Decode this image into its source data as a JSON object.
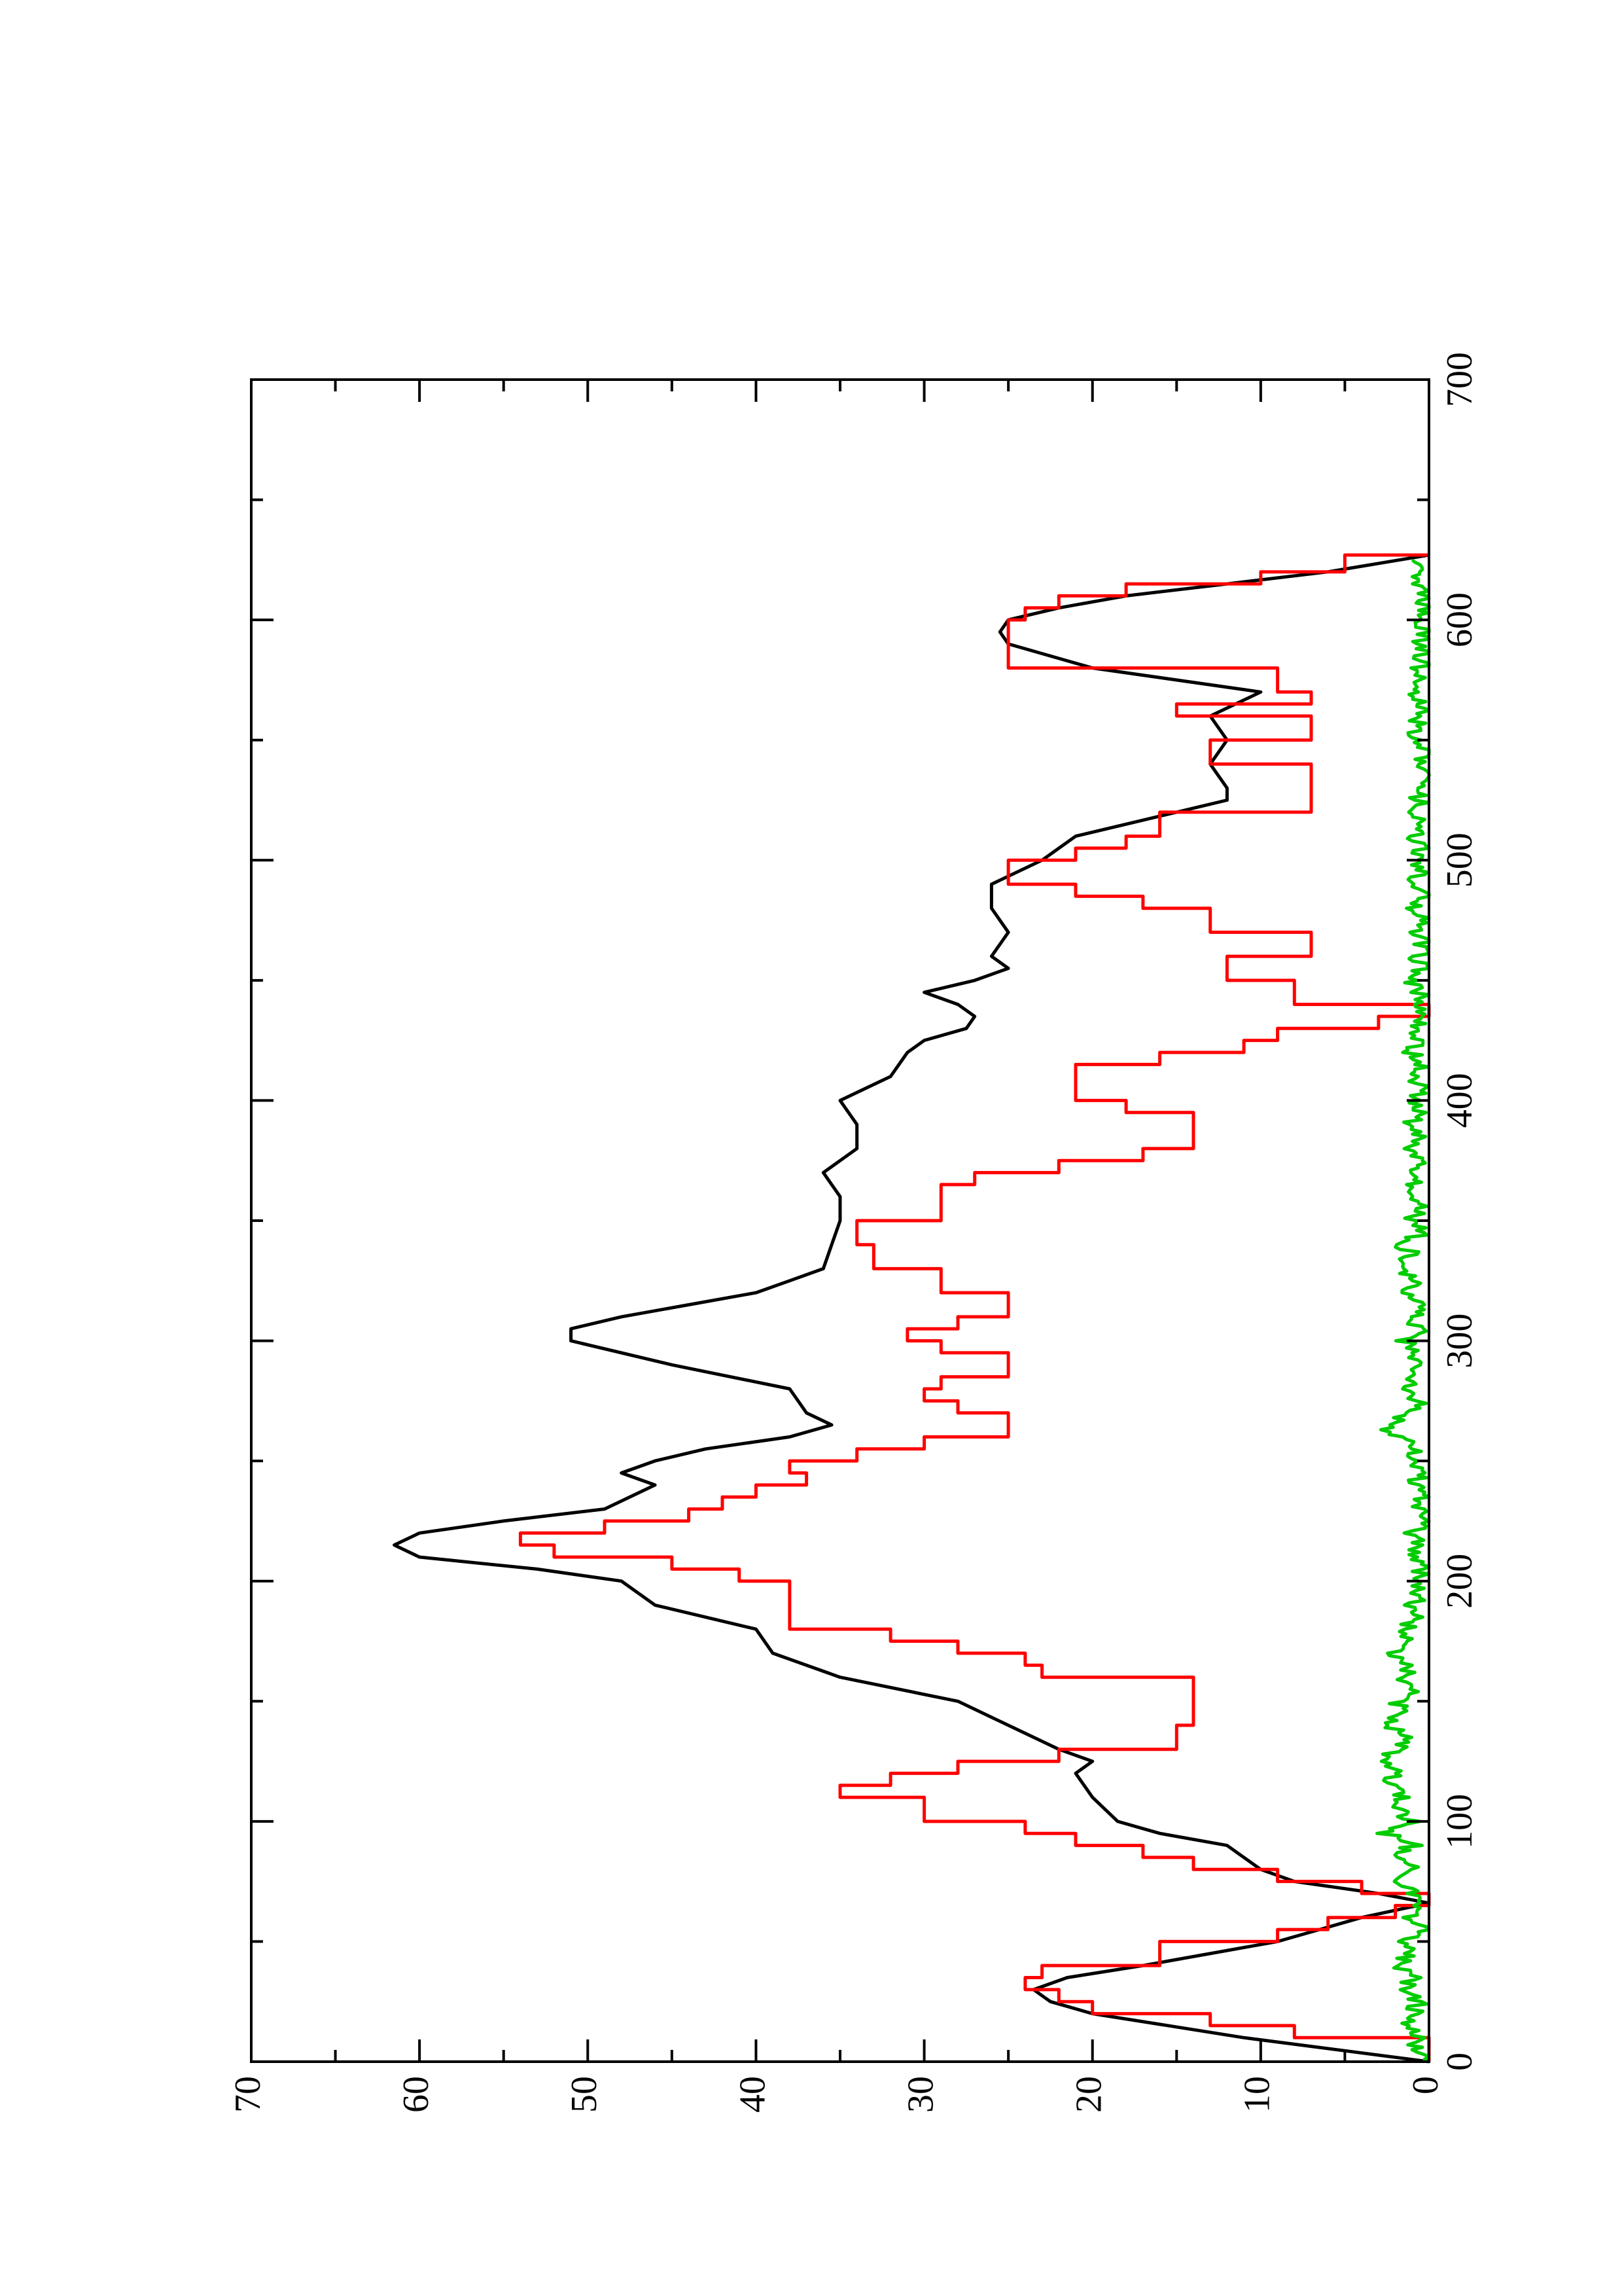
{
  "chart_data": {
    "type": "line",
    "title": "",
    "xlabel": "",
    "ylabel": "",
    "orientation": "rotated-90-ccw",
    "xlim": [
      0,
      700
    ],
    "ylim": [
      0,
      70
    ],
    "x_major_ticks": [
      0,
      100,
      200,
      300,
      400,
      500,
      600,
      700
    ],
    "x_minor_ticks": [
      50,
      150,
      250,
      350,
      450,
      550,
      650
    ],
    "y_major_ticks": [
      0,
      10,
      20,
      30,
      40,
      50,
      60,
      70
    ],
    "y_minor_ticks": [
      5,
      15,
      25,
      35,
      45,
      55,
      65
    ],
    "x_tick_labels": [
      "0",
      "100",
      "200",
      "300",
      "400",
      "500",
      "600",
      "700"
    ],
    "y_tick_labels": [
      "0",
      "10",
      "20",
      "30",
      "40",
      "50",
      "60",
      "70"
    ],
    "grid": false,
    "legend": "none",
    "series": [
      {
        "color": "#000000",
        "style": "smooth",
        "points": [
          [
            0,
            0
          ],
          [
            10,
            11
          ],
          [
            20,
            20
          ],
          [
            25,
            22.5
          ],
          [
            30,
            23.5
          ],
          [
            35,
            21.5
          ],
          [
            40,
            17
          ],
          [
            50,
            9
          ],
          [
            60,
            4
          ],
          [
            66,
            0
          ],
          [
            70,
            3
          ],
          [
            75,
            8
          ],
          [
            80,
            10
          ],
          [
            90,
            12
          ],
          [
            95,
            16
          ],
          [
            100,
            18.5
          ],
          [
            110,
            20
          ],
          [
            120,
            21
          ],
          [
            125,
            20
          ],
          [
            130,
            22
          ],
          [
            140,
            25
          ],
          [
            150,
            28
          ],
          [
            160,
            35
          ],
          [
            170,
            39
          ],
          [
            180,
            40
          ],
          [
            190,
            46
          ],
          [
            200,
            48
          ],
          [
            205,
            53
          ],
          [
            210,
            60
          ],
          [
            215,
            61.5
          ],
          [
            220,
            60
          ],
          [
            225,
            55
          ],
          [
            230,
            49
          ],
          [
            240,
            46
          ],
          [
            245,
            48
          ],
          [
            250,
            46
          ],
          [
            255,
            43
          ],
          [
            260,
            38
          ],
          [
            265,
            35.5
          ],
          [
            270,
            37
          ],
          [
            280,
            38
          ],
          [
            290,
            45
          ],
          [
            300,
            51
          ],
          [
            305,
            51
          ],
          [
            310,
            48
          ],
          [
            315,
            44
          ],
          [
            320,
            40
          ],
          [
            325,
            38
          ],
          [
            330,
            36
          ],
          [
            340,
            35.5
          ],
          [
            350,
            35
          ],
          [
            360,
            35
          ],
          [
            370,
            36
          ],
          [
            380,
            34
          ],
          [
            390,
            34
          ],
          [
            400,
            35
          ],
          [
            410,
            32
          ],
          [
            420,
            31
          ],
          [
            425,
            30
          ],
          [
            430,
            27.5
          ],
          [
            435,
            27
          ],
          [
            440,
            28
          ],
          [
            445,
            30
          ],
          [
            450,
            27
          ],
          [
            455,
            25
          ],
          [
            460,
            26
          ],
          [
            470,
            25
          ],
          [
            480,
            26
          ],
          [
            490,
            26
          ],
          [
            500,
            23
          ],
          [
            510,
            21
          ],
          [
            520,
            15
          ],
          [
            525,
            12
          ],
          [
            530,
            12
          ],
          [
            540,
            13
          ],
          [
            550,
            12
          ],
          [
            560,
            13
          ],
          [
            570,
            10
          ],
          [
            580,
            20
          ],
          [
            590,
            25
          ],
          [
            595,
            25.5
          ],
          [
            600,
            25
          ],
          [
            605,
            22
          ],
          [
            610,
            18
          ],
          [
            615,
            12
          ],
          [
            620,
            6
          ],
          [
            627,
            0
          ]
        ]
      },
      {
        "color": "#ff0000",
        "style": "staircase",
        "points": [
          [
            0,
            0
          ],
          [
            10,
            8
          ],
          [
            15,
            13
          ],
          [
            20,
            20
          ],
          [
            25,
            22
          ],
          [
            30,
            24
          ],
          [
            35,
            23
          ],
          [
            40,
            16
          ],
          [
            50,
            9
          ],
          [
            55,
            6
          ],
          [
            60,
            2
          ],
          [
            65,
            0
          ],
          [
            70,
            4
          ],
          [
            75,
            9
          ],
          [
            80,
            14
          ],
          [
            85,
            17
          ],
          [
            90,
            21
          ],
          [
            95,
            24
          ],
          [
            100,
            30
          ],
          [
            110,
            35
          ],
          [
            115,
            32
          ],
          [
            120,
            28
          ],
          [
            125,
            22
          ],
          [
            130,
            15
          ],
          [
            140,
            14
          ],
          [
            150,
            14
          ],
          [
            160,
            23
          ],
          [
            165,
            24
          ],
          [
            170,
            28
          ],
          [
            175,
            32
          ],
          [
            180,
            38
          ],
          [
            190,
            38
          ],
          [
            200,
            41
          ],
          [
            205,
            45
          ],
          [
            210,
            52
          ],
          [
            215,
            54
          ],
          [
            220,
            49
          ],
          [
            225,
            44
          ],
          [
            230,
            42
          ],
          [
            235,
            40
          ],
          [
            240,
            37
          ],
          [
            245,
            38
          ],
          [
            250,
            34
          ],
          [
            255,
            30
          ],
          [
            260,
            25
          ],
          [
            265,
            25
          ],
          [
            270,
            28
          ],
          [
            275,
            30
          ],
          [
            280,
            29
          ],
          [
            285,
            25
          ],
          [
            290,
            25
          ],
          [
            295,
            29
          ],
          [
            300,
            31
          ],
          [
            305,
            28
          ],
          [
            310,
            25
          ],
          [
            315,
            25
          ],
          [
            320,
            29
          ],
          [
            325,
            29
          ],
          [
            330,
            33
          ],
          [
            340,
            34
          ],
          [
            350,
            29
          ],
          [
            360,
            29
          ],
          [
            365,
            27
          ],
          [
            370,
            22
          ],
          [
            375,
            17
          ],
          [
            380,
            14
          ],
          [
            390,
            14
          ],
          [
            395,
            18
          ],
          [
            400,
            21
          ],
          [
            410,
            21
          ],
          [
            415,
            16
          ],
          [
            420,
            11
          ],
          [
            425,
            9
          ],
          [
            430,
            3
          ],
          [
            435,
            0
          ],
          [
            440,
            8
          ],
          [
            450,
            12
          ],
          [
            460,
            7
          ],
          [
            470,
            13
          ],
          [
            480,
            17
          ],
          [
            485,
            21
          ],
          [
            490,
            25
          ],
          [
            495,
            25
          ],
          [
            500,
            21
          ],
          [
            505,
            18
          ],
          [
            510,
            16
          ],
          [
            520,
            7
          ],
          [
            530,
            7
          ],
          [
            540,
            13
          ],
          [
            550,
            7
          ],
          [
            560,
            15
          ],
          [
            565,
            7
          ],
          [
            570,
            9
          ],
          [
            580,
            25
          ],
          [
            590,
            25
          ],
          [
            600,
            24
          ],
          [
            605,
            22
          ],
          [
            610,
            18
          ],
          [
            615,
            10
          ],
          [
            620,
            5
          ],
          [
            627,
            0
          ]
        ]
      },
      {
        "color": "#00cc00",
        "style": "noisy",
        "points": [
          [
            0,
            0
          ],
          [
            5,
            1
          ],
          [
            10,
            0.5
          ],
          [
            15,
            1.5
          ],
          [
            20,
            1
          ],
          [
            25,
            0.5
          ],
          [
            30,
            1.5
          ],
          [
            35,
            0.8
          ],
          [
            40,
            2
          ],
          [
            45,
            1
          ],
          [
            50,
            1.5
          ],
          [
            55,
            0.5
          ],
          [
            60,
            1
          ],
          [
            65,
            0.5
          ],
          [
            70,
            1
          ],
          [
            75,
            1.5
          ],
          [
            80,
            1
          ],
          [
            85,
            2
          ],
          [
            90,
            1
          ],
          [
            95,
            2.5
          ],
          [
            100,
            1
          ],
          [
            105,
            2
          ],
          [
            110,
            1.5
          ],
          [
            115,
            2.5
          ],
          [
            120,
            2
          ],
          [
            125,
            3
          ],
          [
            130,
            2
          ],
          [
            135,
            1.5
          ],
          [
            140,
            2.5
          ],
          [
            145,
            1.5
          ],
          [
            150,
            2
          ],
          [
            155,
            1
          ],
          [
            160,
            1.5
          ],
          [
            165,
            1
          ],
          [
            170,
            2
          ],
          [
            175,
            0.8
          ],
          [
            180,
            1.5
          ],
          [
            185,
            0.5
          ],
          [
            190,
            1
          ],
          [
            195,
            0.5
          ],
          [
            200,
            1
          ],
          [
            205,
            0.3
          ],
          [
            210,
            1
          ],
          [
            215,
            0.5
          ],
          [
            220,
            1
          ],
          [
            225,
            0.3
          ],
          [
            230,
            0.8
          ],
          [
            235,
            0.3
          ],
          [
            240,
            1
          ],
          [
            245,
            0.5
          ],
          [
            250,
            1
          ],
          [
            255,
            0.5
          ],
          [
            260,
            2
          ],
          [
            265,
            2.5
          ],
          [
            270,
            1
          ],
          [
            275,
            0.5
          ],
          [
            280,
            1.5
          ],
          [
            285,
            0.8
          ],
          [
            290,
            1
          ],
          [
            295,
            0.5
          ],
          [
            300,
            1.5
          ],
          [
            305,
            0.5
          ],
          [
            310,
            1
          ],
          [
            315,
            0.5
          ],
          [
            320,
            1.5
          ],
          [
            325,
            1
          ],
          [
            330,
            2
          ],
          [
            335,
            1
          ],
          [
            340,
            1.5
          ],
          [
            345,
            0.5
          ],
          [
            350,
            1
          ],
          [
            355,
            0.5
          ],
          [
            360,
            1.5
          ],
          [
            365,
            0.8
          ],
          [
            370,
            1.5
          ],
          [
            375,
            0.5
          ],
          [
            380,
            1
          ],
          [
            385,
            0.5
          ],
          [
            390,
            1.2
          ],
          [
            395,
            0.5
          ],
          [
            400,
            1
          ],
          [
            405,
            0.5
          ],
          [
            410,
            1.2
          ],
          [
            415,
            0.5
          ],
          [
            420,
            1
          ],
          [
            425,
            0.5
          ],
          [
            430,
            0.8
          ],
          [
            435,
            0.3
          ],
          [
            440,
            1
          ],
          [
            445,
            0.5
          ],
          [
            450,
            1
          ],
          [
            455,
            0.5
          ],
          [
            460,
            0.8
          ],
          [
            465,
            0.3
          ],
          [
            470,
            1
          ],
          [
            475,
            0.5
          ],
          [
            480,
            0.8
          ],
          [
            485,
            0.3
          ],
          [
            490,
            0.8
          ],
          [
            495,
            0.5
          ],
          [
            500,
            0.8
          ],
          [
            505,
            0.3
          ],
          [
            510,
            0.8
          ],
          [
            515,
            0.3
          ],
          [
            520,
            0.8
          ],
          [
            525,
            0.5
          ],
          [
            530,
            0.8
          ],
          [
            535,
            0.3
          ],
          [
            540,
            0.8
          ],
          [
            545,
            0.3
          ],
          [
            550,
            1
          ],
          [
            555,
            0.5
          ],
          [
            560,
            0.8
          ],
          [
            565,
            0.5
          ],
          [
            570,
            0.8
          ],
          [
            575,
            0.3
          ],
          [
            580,
            0.5
          ],
          [
            585,
            0.3
          ],
          [
            590,
            0.5
          ],
          [
            595,
            0.3
          ],
          [
            600,
            0.5
          ],
          [
            605,
            0.3
          ],
          [
            610,
            0.5
          ],
          [
            615,
            0.5
          ],
          [
            620,
            0.8
          ],
          [
            625,
            1
          ]
        ]
      }
    ]
  }
}
